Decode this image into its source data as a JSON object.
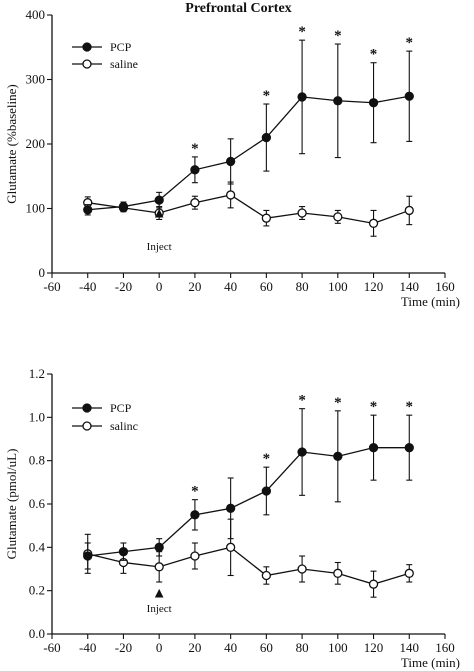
{
  "chart_data": [
    {
      "type": "line",
      "title": "Prefrontal Cortex",
      "xlabel": "Time (min)",
      "ylabel": "Glutamate (%baseline)",
      "xlim": [
        -60,
        160
      ],
      "ylim": [
        0,
        400
      ],
      "xticks": [
        -60,
        -40,
        -20,
        0,
        20,
        40,
        60,
        80,
        100,
        120,
        140,
        160
      ],
      "yticks": [
        0,
        100,
        200,
        300,
        400
      ],
      "x": [
        -40,
        -20,
        0,
        20,
        40,
        60,
        80,
        100,
        120,
        140
      ],
      "series": [
        {
          "name": "PCP",
          "marker": "filled-circle",
          "values": [
            98,
            103,
            113,
            160,
            173,
            210,
            273,
            267,
            264,
            274
          ],
          "errors": [
            8,
            7,
            12,
            20,
            35,
            52,
            88,
            88,
            62,
            70
          ]
        },
        {
          "name": "saline",
          "marker": "open-circle",
          "values": [
            109,
            101,
            93,
            109,
            121,
            85,
            93,
            87,
            77,
            97
          ],
          "errors": [
            9,
            6,
            10,
            10,
            20,
            12,
            10,
            10,
            20,
            22
          ]
        }
      ],
      "significance": [
        {
          "x": 20,
          "label": "*"
        },
        {
          "x": 60,
          "label": "*"
        },
        {
          "x": 80,
          "label": "*"
        },
        {
          "x": 100,
          "label": "*"
        },
        {
          "x": 120,
          "label": "*"
        },
        {
          "x": 140,
          "label": "*"
        }
      ],
      "annotation": {
        "x": 0,
        "label": "Inject"
      },
      "legend_position": "top-left"
    },
    {
      "type": "line",
      "title": "",
      "xlabel": "Time (min)",
      "ylabel": "Glutamate (pmol/uL)",
      "xlim": [
        -60,
        160
      ],
      "ylim": [
        0,
        1.2
      ],
      "xticks": [
        -60,
        -40,
        -20,
        0,
        20,
        40,
        60,
        80,
        100,
        120,
        140,
        160
      ],
      "yticks": [
        0.0,
        0.2,
        0.4,
        0.6,
        0.8,
        1.0,
        1.2
      ],
      "ytick_labels": [
        "0.0",
        "0.2",
        "0.4",
        "0.6",
        "0.8",
        "1.0",
        "1.2"
      ],
      "x": [
        -40,
        -20,
        0,
        20,
        40,
        60,
        80,
        100,
        120,
        140
      ],
      "series": [
        {
          "name": "PCP",
          "marker": "filled-circle",
          "values": [
            0.36,
            0.38,
            0.4,
            0.55,
            0.58,
            0.66,
            0.84,
            0.82,
            0.86,
            0.86
          ],
          "errors": [
            0.06,
            0.04,
            0.04,
            0.07,
            0.14,
            0.11,
            0.2,
            0.21,
            0.15,
            0.15
          ]
        },
        {
          "name": "salinc",
          "marker": "open-circle",
          "values": [
            0.37,
            0.33,
            0.31,
            0.36,
            0.4,
            0.27,
            0.3,
            0.28,
            0.23,
            0.28
          ],
          "errors": [
            0.09,
            0.05,
            0.07,
            0.06,
            0.13,
            0.04,
            0.06,
            0.05,
            0.06,
            0.04
          ]
        }
      ],
      "significance": [
        {
          "x": 20,
          "label": "*"
        },
        {
          "x": 60,
          "label": "*"
        },
        {
          "x": 80,
          "label": "*"
        },
        {
          "x": 100,
          "label": "*"
        },
        {
          "x": 120,
          "label": "*"
        },
        {
          "x": 140,
          "label": "*"
        }
      ],
      "annotation": {
        "x": 0,
        "label": "Inject"
      },
      "legend_position": "top-left"
    }
  ]
}
